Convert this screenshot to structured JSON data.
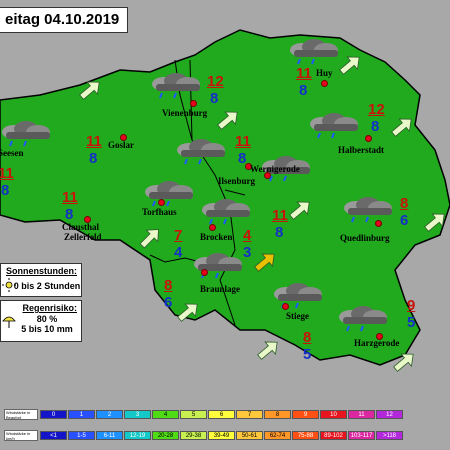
{
  "title": "eitag 04.10.2019",
  "towns": [
    {
      "name": "Seesen"
    },
    {
      "name": "Goslar"
    },
    {
      "name": "Vienenburg"
    },
    {
      "name": "Huy"
    },
    {
      "name": "Halberstadt"
    },
    {
      "name": "Ilsenburg"
    },
    {
      "name": "Wernigerode"
    },
    {
      "name": "Clausthal"
    },
    {
      "name": "Zellerfeld"
    },
    {
      "name": "Torfhaus"
    },
    {
      "name": "Brocken"
    },
    {
      "name": "Quedlinburg"
    },
    {
      "name": "Braunlage"
    },
    {
      "name": "Stiege"
    },
    {
      "name": "Harzgerode"
    }
  ],
  "temps": [
    {
      "max": "11",
      "min": "8"
    },
    {
      "max": "11",
      "min": "8"
    },
    {
      "max": "12",
      "min": "8"
    },
    {
      "max": "11",
      "min": "8"
    },
    {
      "max": "12",
      "min": "8"
    },
    {
      "max": "11",
      "min": "8"
    },
    {
      "max": "8",
      "min": "6"
    },
    {
      "max": "7",
      "min": "4"
    },
    {
      "max": "4",
      "min": "3"
    },
    {
      "max": "11",
      "min": "8"
    },
    {
      "max": "11",
      "min": "8"
    },
    {
      "max": "8",
      "min": "6"
    },
    {
      "max": "9",
      "min": "5"
    },
    {
      "max": "8",
      "min": "5"
    }
  ],
  "legend": {
    "sun_title": "Sonnenstunden:",
    "sun_value": "0 bis 2 Stunden",
    "rain_title": "Regenrisiko:",
    "rain_pct": "80 %",
    "rain_amount": "5 bis 10 mm"
  },
  "scale": {
    "beaufort_label": "Windstärke in Beaufort",
    "kmh_label": "Windstärke in km/h",
    "beaufort": [
      "0",
      "1",
      "2",
      "3",
      "4",
      "5",
      "6",
      "7",
      "8",
      "9",
      "10",
      "11",
      "12"
    ],
    "kmh": [
      "<1",
      "1-5",
      "6-11",
      "12-19",
      "20-28",
      "29-38",
      "39-49",
      "50-61",
      "62-74",
      "75-88",
      "89-102",
      "103-117",
      ">118"
    ],
    "colors": [
      "#1414c8",
      "#2850ff",
      "#1e90ff",
      "#14c8c8",
      "#50dc14",
      "#c8f050",
      "#ffff3c",
      "#ffc83c",
      "#ff9628",
      "#ff5014",
      "#e6141e",
      "#dc28a0",
      "#b428dc"
    ]
  }
}
